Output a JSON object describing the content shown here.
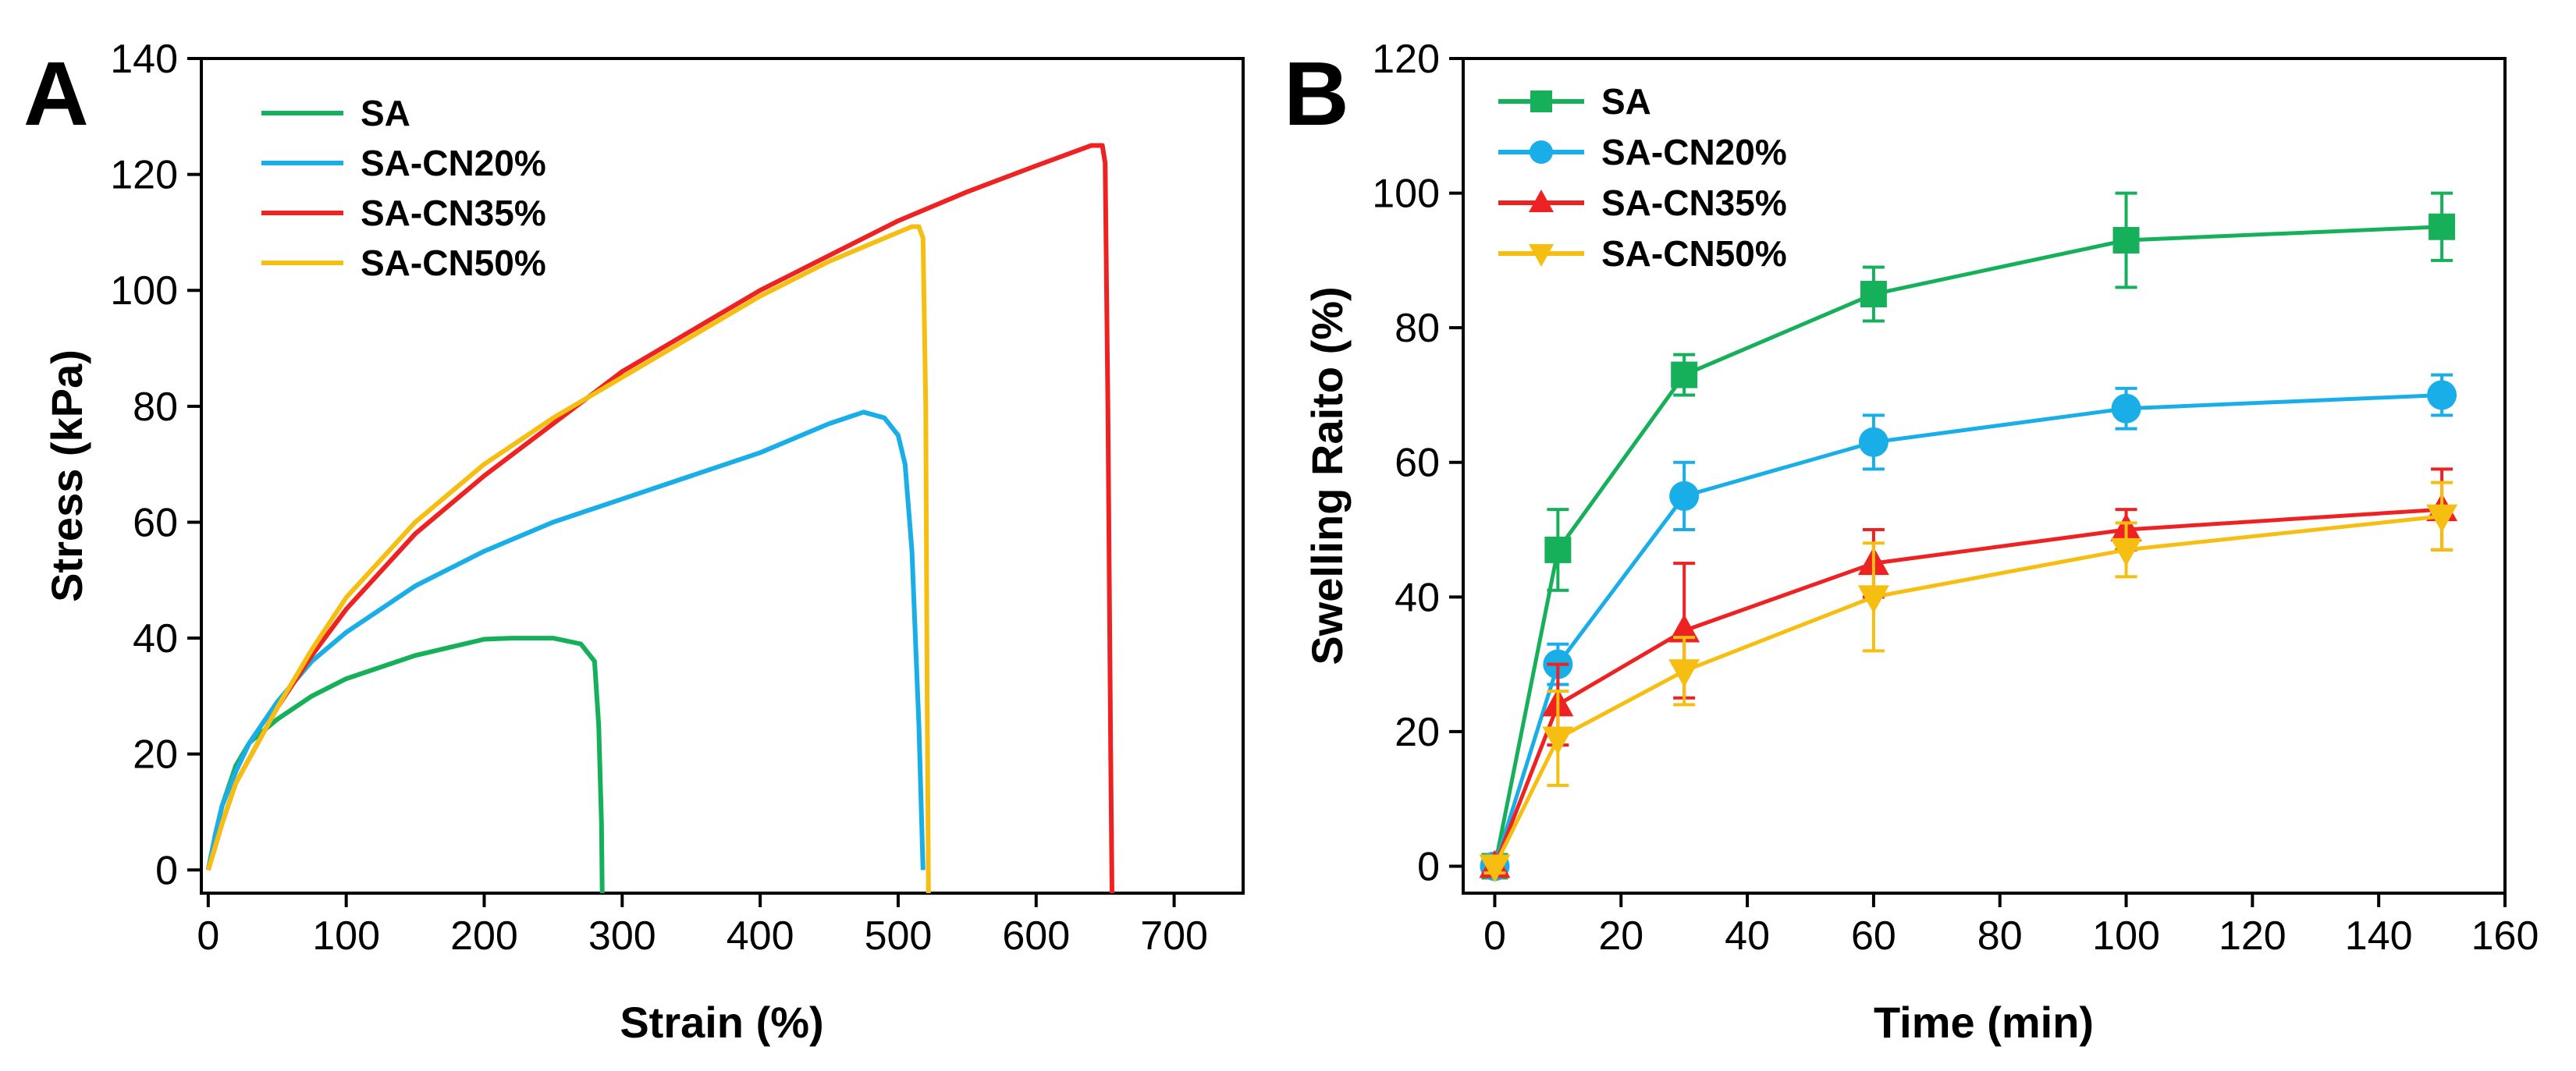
{
  "chart_data": [
    {
      "panel_label": "A",
      "type": "line",
      "title": "",
      "xlabel": "Strain (%)",
      "ylabel": "Stress (kPa)",
      "xlim": [
        -5,
        750
      ],
      "ylim": [
        -4,
        140
      ],
      "xticks": [
        0,
        100,
        200,
        300,
        400,
        500,
        600,
        700
      ],
      "yticks": [
        0,
        20,
        40,
        60,
        80,
        100,
        120,
        140
      ],
      "legend_position": "top-left",
      "series": [
        {
          "name": "SA",
          "color": "#16b05a",
          "x": [
            0,
            5,
            10,
            20,
            30,
            50,
            75,
            100,
            150,
            200,
            220,
            250,
            270,
            280,
            283,
            285,
            285.5
          ],
          "y": [
            0,
            6,
            11,
            18,
            22,
            26,
            30,
            33,
            37,
            39.8,
            40,
            40,
            39,
            36,
            25,
            8,
            -4
          ]
        },
        {
          "name": "SA-CN20%",
          "color": "#1aaee8",
          "x": [
            0,
            5,
            10,
            20,
            30,
            50,
            75,
            100,
            150,
            200,
            250,
            300,
            350,
            400,
            450,
            475,
            490,
            500,
            505,
            510,
            515,
            518
          ],
          "y": [
            0,
            6,
            11,
            17,
            22,
            29,
            36,
            41,
            49,
            55,
            60,
            64,
            68,
            72,
            77,
            79,
            78,
            75,
            70,
            55,
            25,
            0
          ]
        },
        {
          "name": "SA-CN35%",
          "color": "#ee2222",
          "x": [
            0,
            5,
            10,
            20,
            50,
            75,
            100,
            150,
            200,
            250,
            300,
            350,
            400,
            450,
            500,
            550,
            600,
            640,
            648,
            650,
            652,
            654,
            655
          ],
          "y": [
            0,
            4,
            8,
            15,
            28,
            37,
            45,
            58,
            68,
            77,
            86,
            93,
            100,
            106,
            112,
            117,
            121.5,
            125,
            125,
            122,
            80,
            20,
            -4
          ]
        },
        {
          "name": "SA-CN50%",
          "color": "#f5be10",
          "x": [
            0,
            5,
            10,
            20,
            50,
            75,
            100,
            150,
            200,
            250,
            300,
            350,
            400,
            450,
            500,
            510,
            515,
            518,
            520,
            521,
            522
          ],
          "y": [
            0,
            4,
            8,
            15,
            28,
            38,
            47,
            60,
            70,
            78,
            85,
            92,
            99,
            105,
            110,
            111,
            111,
            109,
            80,
            30,
            -4
          ]
        }
      ]
    },
    {
      "panel_label": "B",
      "type": "line",
      "title": "",
      "xlabel": "Time (min)",
      "ylabel": "Swelling Raito (%)",
      "xlim": [
        -5,
        160
      ],
      "ylim": [
        -4,
        120
      ],
      "xticks": [
        0,
        20,
        40,
        60,
        80,
        100,
        120,
        140,
        160
      ],
      "yticks": [
        0,
        20,
        40,
        60,
        80,
        100,
        120
      ],
      "legend_position": "top-left",
      "series": [
        {
          "name": "SA",
          "color": "#16b05a",
          "marker": "square",
          "x": [
            0,
            10,
            30,
            60,
            100,
            150
          ],
          "y": [
            0,
            47,
            73,
            85,
            93,
            95
          ],
          "err": [
            1,
            6,
            3,
            4,
            7,
            5
          ]
        },
        {
          "name": "SA-CN20%",
          "color": "#1aaee8",
          "marker": "circle",
          "x": [
            0,
            10,
            30,
            60,
            100,
            150
          ],
          "y": [
            0,
            30,
            55,
            63,
            68,
            70
          ],
          "err": [
            1,
            3,
            5,
            4,
            3,
            3
          ]
        },
        {
          "name": "SA-CN35%",
          "color": "#ee2222",
          "marker": "triangle-up",
          "x": [
            0,
            10,
            30,
            60,
            100,
            150
          ],
          "y": [
            0,
            24,
            35,
            45,
            50,
            53
          ],
          "err": [
            1,
            6,
            10,
            5,
            3,
            6
          ]
        },
        {
          "name": "SA-CN50%",
          "color": "#f5be10",
          "marker": "triangle-down",
          "x": [
            0,
            10,
            30,
            60,
            100,
            150
          ],
          "y": [
            0,
            19,
            29,
            40,
            47,
            52
          ],
          "err": [
            1,
            7,
            5,
            8,
            4,
            5
          ]
        }
      ]
    }
  ]
}
